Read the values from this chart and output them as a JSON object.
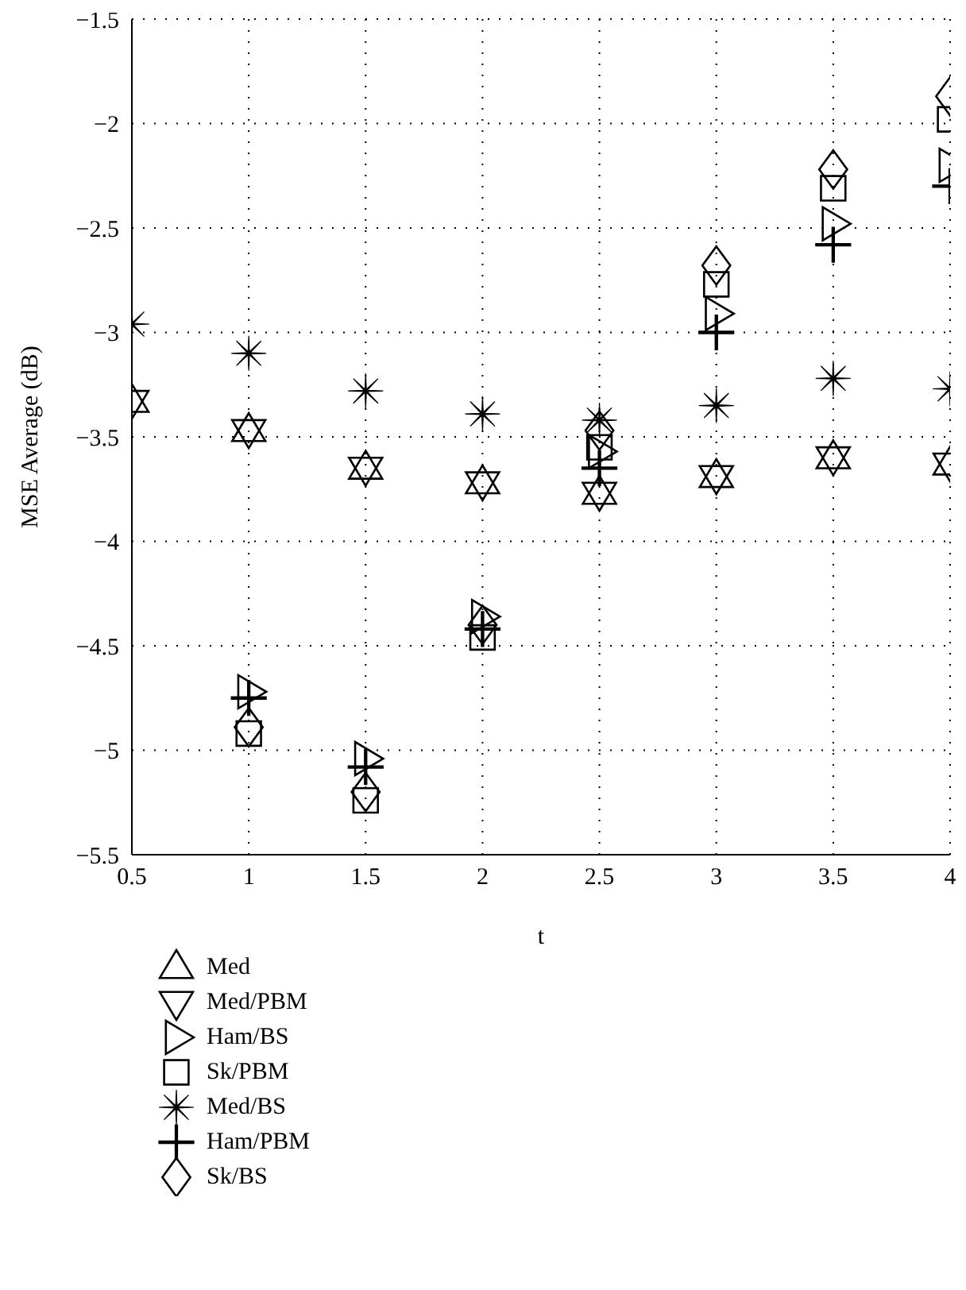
{
  "chart_data": {
    "type": "scatter",
    "xlabel": "t",
    "ylabel": "MSE Average (dB)",
    "x": [
      0.5,
      1,
      1.5,
      2,
      2.5,
      3,
      3.5,
      4
    ],
    "xlim": [
      0.5,
      4
    ],
    "xticks": [
      0.5,
      1,
      1.5,
      2,
      2.5,
      3,
      3.5,
      4
    ],
    "ylim": [
      -5.5,
      -1.5
    ],
    "yticks": [
      -5.5,
      -5,
      -4.5,
      -4,
      -3.5,
      -3,
      -2.5,
      -2,
      -1.5
    ],
    "grid": true,
    "legend": "bottom left",
    "series": [
      {
        "name": "Med",
        "color": "#000000",
        "marker": "triangle",
        "values": [
          -3.33,
          -3.47,
          -3.65,
          -3.72,
          -3.77,
          -3.69,
          -3.6,
          -3.63
        ]
      },
      {
        "name": "Med/PBM",
        "color": "#000000",
        "marker": "triangle-down",
        "values": [
          -3.33,
          -3.47,
          -3.65,
          -3.72,
          -3.77,
          -3.69,
          -3.6,
          -3.63
        ]
      },
      {
        "name": "Ham/BS",
        "color": "#000000",
        "marker": "triangle-right",
        "values": [
          null,
          -4.72,
          -5.04,
          -4.36,
          -3.57,
          -2.91,
          -2.48,
          -2.2
        ]
      },
      {
        "name": "Sk/PBM",
        "color": "#000000",
        "marker": "square",
        "values": [
          null,
          -4.92,
          -5.24,
          -4.46,
          -3.55,
          -2.77,
          -2.31,
          -1.98
        ]
      },
      {
        "name": "Med/BS",
        "color": "#000000",
        "marker": "star",
        "values": [
          -2.96,
          -3.1,
          -3.28,
          -3.39,
          -3.42,
          -3.35,
          -3.22,
          -3.27
        ]
      },
      {
        "name": "Ham/PBM",
        "color": "#000000",
        "marker": "cross",
        "values": [
          null,
          -4.75,
          -5.08,
          -4.42,
          -3.65,
          -3.0,
          -2.58,
          -2.3
        ]
      },
      {
        "name": "Sk/BS",
        "color": "#000000",
        "marker": "diamond",
        "values": [
          null,
          -4.89,
          -5.2,
          -4.4,
          -3.47,
          -2.68,
          -2.22,
          -1.87
        ]
      }
    ]
  }
}
